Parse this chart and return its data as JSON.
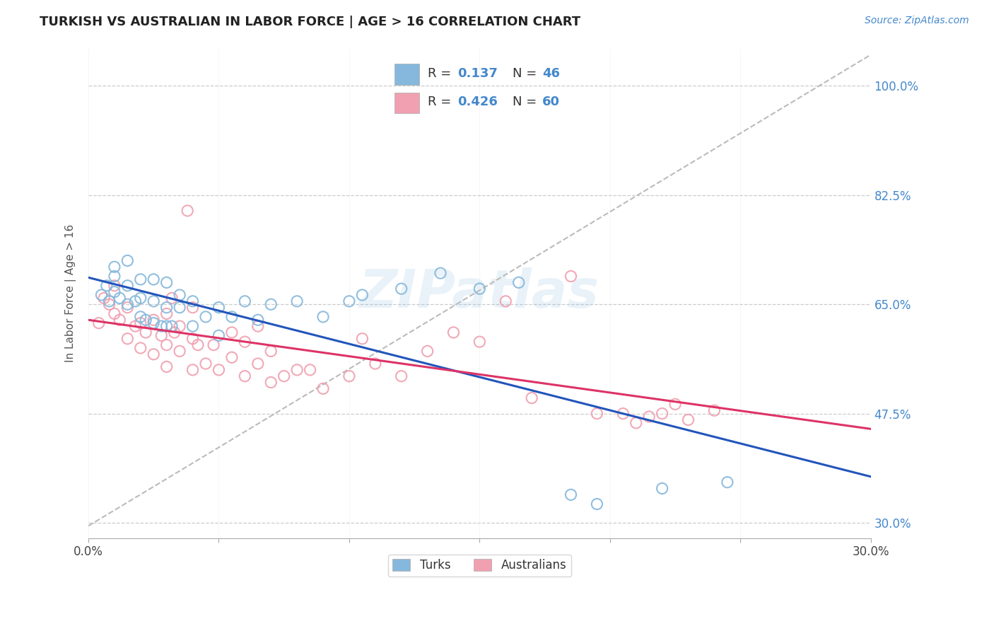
{
  "title": "TURKISH VS AUSTRALIAN IN LABOR FORCE | AGE > 16 CORRELATION CHART",
  "source": "Source: ZipAtlas.com",
  "ylabel": "In Labor Force | Age > 16",
  "xlim": [
    0.0,
    0.3
  ],
  "ylim": [
    0.275,
    1.06
  ],
  "yticks": [
    0.3,
    0.475,
    0.65,
    0.825,
    1.0
  ],
  "ytick_labels": [
    "30.0%",
    "47.5%",
    "65.0%",
    "82.5%",
    "100.0%"
  ],
  "xticks": [
    0.0,
    0.05,
    0.1,
    0.15,
    0.2,
    0.25,
    0.3
  ],
  "xtick_labels": [
    "0.0%",
    "",
    "",
    "",
    "",
    "",
    "30.0%"
  ],
  "background_color": "#ffffff",
  "grid_color": "#cccccc",
  "blue_edge_color": "#85B8DC",
  "pink_edge_color": "#F0A0B0",
  "blue_line_color": "#2255BB",
  "pink_line_color": "#DD3366",
  "ref_line_color": "#BBBBBB",
  "tick_label_color": "#4488CC",
  "R_blue": 0.137,
  "N_blue": 46,
  "R_pink": 0.426,
  "N_pink": 60,
  "legend_label_blue": "Turks",
  "legend_label_pink": "Australians",
  "watermark": "ZIPatlas",
  "blue_scatter_x": [
    0.005,
    0.007,
    0.008,
    0.01,
    0.01,
    0.01,
    0.012,
    0.015,
    0.015,
    0.015,
    0.018,
    0.02,
    0.02,
    0.02,
    0.022,
    0.025,
    0.025,
    0.025,
    0.028,
    0.03,
    0.03,
    0.03,
    0.032,
    0.035,
    0.035,
    0.04,
    0.04,
    0.045,
    0.05,
    0.05,
    0.055,
    0.06,
    0.065,
    0.07,
    0.08,
    0.09,
    0.1,
    0.105,
    0.12,
    0.135,
    0.15,
    0.165,
    0.185,
    0.195,
    0.22,
    0.245
  ],
  "blue_scatter_y": [
    0.665,
    0.68,
    0.655,
    0.67,
    0.695,
    0.71,
    0.66,
    0.65,
    0.68,
    0.72,
    0.655,
    0.63,
    0.66,
    0.69,
    0.625,
    0.62,
    0.655,
    0.69,
    0.615,
    0.615,
    0.645,
    0.685,
    0.615,
    0.645,
    0.665,
    0.615,
    0.655,
    0.63,
    0.6,
    0.645,
    0.63,
    0.655,
    0.625,
    0.65,
    0.655,
    0.63,
    0.655,
    0.665,
    0.675,
    0.7,
    0.675,
    0.685,
    0.345,
    0.33,
    0.355,
    0.365
  ],
  "pink_scatter_x": [
    0.004,
    0.006,
    0.008,
    0.01,
    0.01,
    0.012,
    0.015,
    0.015,
    0.018,
    0.02,
    0.02,
    0.022,
    0.025,
    0.025,
    0.028,
    0.03,
    0.03,
    0.03,
    0.032,
    0.033,
    0.035,
    0.035,
    0.038,
    0.04,
    0.04,
    0.04,
    0.042,
    0.045,
    0.048,
    0.05,
    0.055,
    0.055,
    0.06,
    0.06,
    0.065,
    0.065,
    0.07,
    0.07,
    0.075,
    0.08,
    0.085,
    0.09,
    0.1,
    0.105,
    0.11,
    0.12,
    0.13,
    0.14,
    0.15,
    0.16,
    0.17,
    0.185,
    0.195,
    0.205,
    0.21,
    0.215,
    0.22,
    0.225,
    0.23,
    0.24
  ],
  "pink_scatter_y": [
    0.62,
    0.66,
    0.65,
    0.635,
    0.68,
    0.625,
    0.595,
    0.645,
    0.615,
    0.58,
    0.62,
    0.605,
    0.57,
    0.625,
    0.6,
    0.55,
    0.585,
    0.635,
    0.66,
    0.605,
    0.575,
    0.615,
    0.8,
    0.545,
    0.595,
    0.645,
    0.585,
    0.555,
    0.585,
    0.545,
    0.565,
    0.605,
    0.535,
    0.59,
    0.555,
    0.615,
    0.525,
    0.575,
    0.535,
    0.545,
    0.545,
    0.515,
    0.535,
    0.595,
    0.555,
    0.535,
    0.575,
    0.605,
    0.59,
    0.655,
    0.5,
    0.695,
    0.475,
    0.475,
    0.46,
    0.47,
    0.475,
    0.49,
    0.465,
    0.48
  ]
}
